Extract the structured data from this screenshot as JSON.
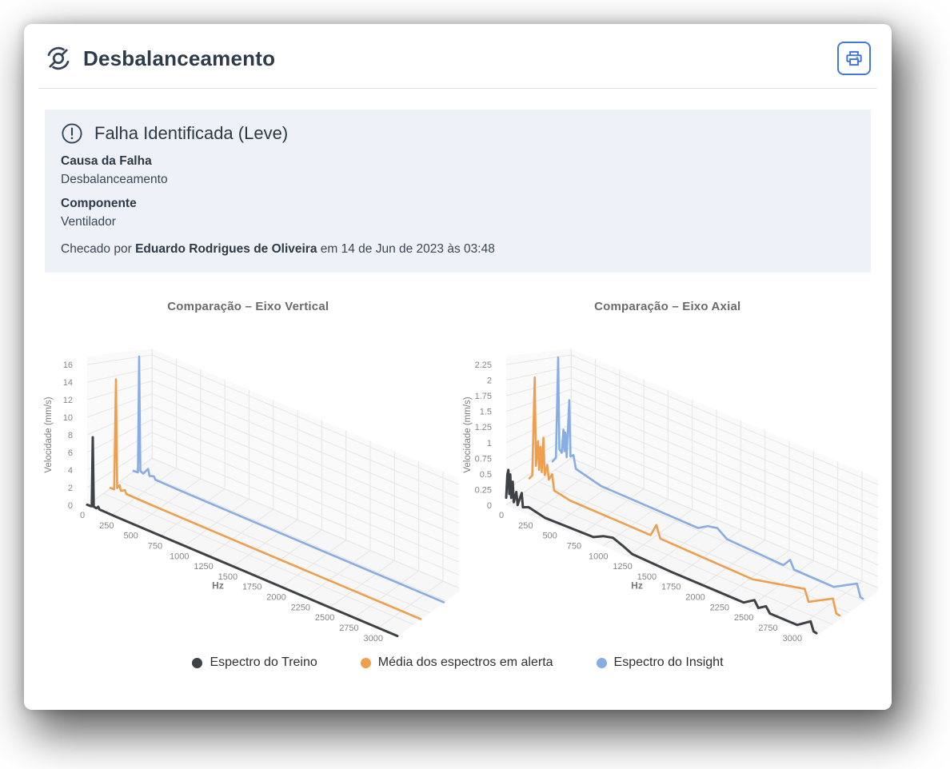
{
  "header": {
    "title": "Desbalanceamento"
  },
  "icons": [
    "unbalance-icon",
    "printer-icon",
    "alert-circle-icon"
  ],
  "colors": {
    "accent_blue": "#4579d6",
    "alert_bg": "#eef2f8",
    "heading_text": "#2e3b4a",
    "series_treino": "#3e4145",
    "series_alerta": "#ef9e4e",
    "series_insight": "#88ade4"
  },
  "alert": {
    "title": "Falha Identificada (Leve)",
    "fields": [
      {
        "label": "Causa da Falha",
        "value": "Desbalanceamento"
      },
      {
        "label": "Componente",
        "value": "Ventilador"
      }
    ],
    "checked_by": {
      "prefix": "Checado por",
      "name": "Eduardo Rodrigues de Oliveira",
      "suffix": "em 14 de Jun de 2023 às 03:48"
    }
  },
  "legend": [
    {
      "label": "Espectro do Treino",
      "color": "#3e4145"
    },
    {
      "label": "Média dos espectros em alerta",
      "color": "#ef9e4e"
    },
    {
      "label": "Espectro do Insight",
      "color": "#88ade4"
    }
  ],
  "chart_data": [
    {
      "type": "line",
      "projection": "3d-waterfall",
      "title": "Comparação – Eixo Vertical",
      "xlabel": "Hz",
      "zlabel": "Velocidade (mm/s)",
      "x_ticks": [
        0,
        250,
        500,
        750,
        1000,
        1250,
        1500,
        1750,
        2000,
        2250,
        2500,
        2750,
        3000
      ],
      "x_max": 3200,
      "z_ticks": [
        0,
        2,
        4,
        6,
        8,
        10,
        12,
        14,
        16
      ],
      "grid": true,
      "series": [
        {
          "name": "Espectro do Treino",
          "color": "#3e4145",
          "depth": 0,
          "points": [
            [
              0,
              0.05
            ],
            [
              30,
              0.07
            ],
            [
              48,
              0.1
            ],
            [
              58,
              8
            ],
            [
              68,
              0.15
            ],
            [
              95,
              0.1
            ],
            [
              115,
              0.35
            ],
            [
              125,
              0.1
            ],
            [
              300,
              0.07
            ],
            [
              800,
              0.05
            ],
            [
              1600,
              0.05
            ],
            [
              2400,
              0.04
            ],
            [
              3200,
              0.04
            ]
          ]
        },
        {
          "name": "Média dos espectros em alerta",
          "color": "#ef9e4e",
          "depth": 1,
          "points": [
            [
              0,
              0.07
            ],
            [
              40,
              0.1
            ],
            [
              58,
              14
            ],
            [
              70,
              0.4
            ],
            [
              95,
              0.9
            ],
            [
              108,
              0.25
            ],
            [
              150,
              0.55
            ],
            [
              165,
              0.15
            ],
            [
              400,
              0.1
            ],
            [
              1200,
              0.07
            ],
            [
              2200,
              0.06
            ],
            [
              3200,
              0.06
            ]
          ]
        },
        {
          "name": "Espectro do Insight",
          "color": "#88ade4",
          "depth": 2,
          "points": [
            [
              0,
              0.1
            ],
            [
              45,
              0.15
            ],
            [
              58,
              16.5
            ],
            [
              70,
              0.5
            ],
            [
              100,
              0.3
            ],
            [
              150,
              1.25
            ],
            [
              165,
              0.35
            ],
            [
              210,
              0.55
            ],
            [
              225,
              0.15
            ],
            [
              500,
              0.1
            ],
            [
              1500,
              0.08
            ],
            [
              2500,
              0.07
            ],
            [
              3200,
              0.07
            ]
          ]
        }
      ]
    },
    {
      "type": "line",
      "projection": "3d-waterfall",
      "title": "Comparação – Eixo Axial",
      "xlabel": "Hz",
      "zlabel": "Velocidade (mm/s)",
      "x_ticks": [
        0,
        250,
        500,
        750,
        1000,
        1250,
        1500,
        1750,
        2000,
        2250,
        2500,
        2750,
        3000
      ],
      "x_max": 3200,
      "z_ticks": [
        0,
        0.25,
        0.5,
        0.75,
        1,
        1.25,
        1.5,
        1.75,
        2,
        2.25
      ],
      "grid": true,
      "series": [
        {
          "name": "Espectro do Treino",
          "color": "#3e4145",
          "depth": 0,
          "points": [
            [
              0,
              0.12
            ],
            [
              12,
              0.5
            ],
            [
              22,
              0.58
            ],
            [
              32,
              0.2
            ],
            [
              42,
              0.52
            ],
            [
              52,
              0.15
            ],
            [
              68,
              0.42
            ],
            [
              78,
              0.1
            ],
            [
              105,
              0.28
            ],
            [
              118,
              0.08
            ],
            [
              160,
              0.3
            ],
            [
              172,
              0.08
            ],
            [
              230,
              0.12
            ],
            [
              400,
              0.06
            ],
            [
              900,
              0.08
            ],
            [
              1000,
              0.16
            ],
            [
              1100,
              0.2
            ],
            [
              1200,
              0.14
            ],
            [
              1300,
              0.07
            ],
            [
              1700,
              0.05
            ],
            [
              2450,
              0.05
            ],
            [
              2560,
              0.16
            ],
            [
              2600,
              0.06
            ],
            [
              2680,
              0.14
            ],
            [
              2720,
              0.05
            ],
            [
              3000,
              0.05
            ],
            [
              3140,
              0.2
            ],
            [
              3170,
              0.06
            ],
            [
              3200,
              0.05
            ]
          ]
        },
        {
          "name": "Média dos espectros em alerta",
          "color": "#ef9e4e",
          "depth": 1,
          "points": [
            [
              0,
              0.18
            ],
            [
              30,
              0.25
            ],
            [
              55,
              2.0
            ],
            [
              68,
              0.45
            ],
            [
              90,
              0.9
            ],
            [
              100,
              0.4
            ],
            [
              115,
              0.82
            ],
            [
              128,
              0.38
            ],
            [
              145,
              1.0
            ],
            [
              158,
              0.35
            ],
            [
              185,
              0.55
            ],
            [
              200,
              0.3
            ],
            [
              235,
              0.42
            ],
            [
              255,
              0.15
            ],
            [
              420,
              0.09
            ],
            [
              1250,
              0.08
            ],
            [
              1310,
              0.3
            ],
            [
              1350,
              0.09
            ],
            [
              2300,
              0.06
            ],
            [
              2840,
              0.28
            ],
            [
              2880,
              0.08
            ],
            [
              3130,
              0.32
            ],
            [
              3165,
              0.08
            ],
            [
              3200,
              0.07
            ]
          ]
        },
        {
          "name": "Espectro do Insight",
          "color": "#88ade4",
          "depth": 2,
          "points": [
            [
              0,
              0.2
            ],
            [
              35,
              0.3
            ],
            [
              58,
              2.3
            ],
            [
              70,
              0.5
            ],
            [
              95,
              0.45
            ],
            [
              112,
              0.92
            ],
            [
              122,
              0.5
            ],
            [
              132,
              0.88
            ],
            [
              145,
              0.4
            ],
            [
              172,
              1.55
            ],
            [
              185,
              0.45
            ],
            [
              215,
              0.5
            ],
            [
              240,
              0.25
            ],
            [
              500,
              0.12
            ],
            [
              1500,
              0.1
            ],
            [
              1600,
              0.22
            ],
            [
              1700,
              0.26
            ],
            [
              1800,
              0.12
            ],
            [
              2380,
              0.08
            ],
            [
              2450,
              0.24
            ],
            [
              2490,
              0.08
            ],
            [
              2900,
              0.07
            ],
            [
              3140,
              0.33
            ],
            [
              3175,
              0.09
            ],
            [
              3200,
              0.08
            ]
          ]
        }
      ]
    }
  ]
}
